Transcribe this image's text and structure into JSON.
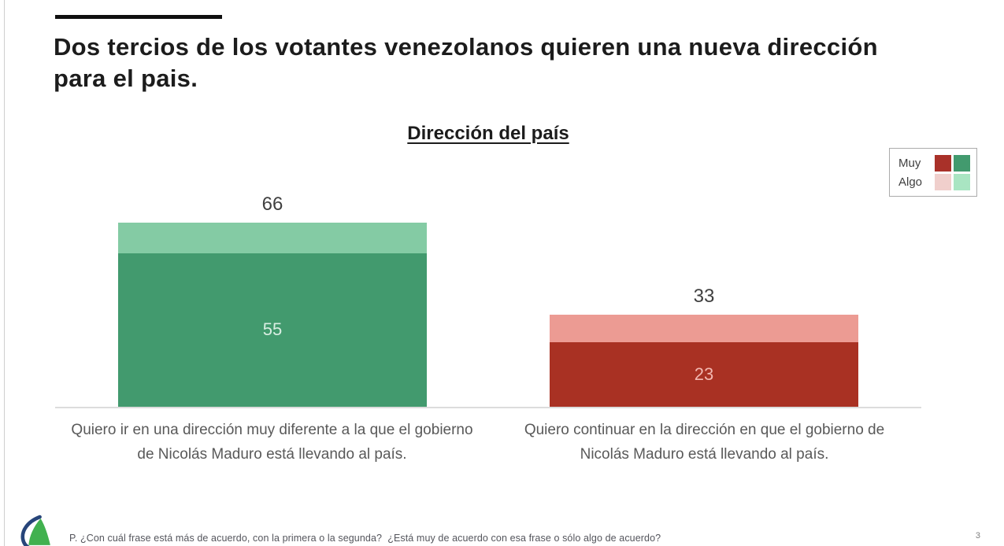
{
  "slide": {
    "title": "Dos tercios de los votantes venezolanos quieren una nueva dirección para el pais.",
    "footnote": "P. ¿Con cuál frase está más de acuerdo, con la primera o la segunda?  ¿Está muy de acuerdo con esa frase o sólo algo de acuerdo?",
    "page_number": "3"
  },
  "chart_data": {
    "type": "bar",
    "subtype": "stacked-columns",
    "title": "Dirección del país",
    "ylim": [
      0,
      78
    ],
    "grid": false,
    "legend": {
      "position": "top-right",
      "rows": [
        {
          "label": "Muy",
          "swatches": [
            "#A93129",
            "#429A6E"
          ]
        },
        {
          "label": "Algo",
          "swatches": [
            "#F0CFCC",
            "#A9E5C2"
          ]
        }
      ]
    },
    "categories": [
      "Quiero ir en una dirección muy diferente a la que el gobierno de Nicolás Maduro está llevando al país.",
      "Quiero continuar en la dirección en que el gobierno de Nicolás Maduro está llevando al país."
    ],
    "series": [
      {
        "name": "Muy",
        "values": [
          55,
          23
        ]
      },
      {
        "name": "Algo",
        "values": [
          11,
          10
        ]
      }
    ],
    "totals": [
      66,
      33
    ],
    "bars": [
      {
        "total_label": "66",
        "muy": 55,
        "muy_label": "55",
        "algo": 11,
        "muy_color": "#429A6E",
        "algo_color": "#84CBA4",
        "muy_label_color": "#D9EEE2"
      },
      {
        "total_label": "33",
        "muy": 23,
        "muy_label": "23",
        "algo": 10,
        "muy_color": "#A93123",
        "algo_color": "#EC9B93",
        "muy_label_color": "#F2B7B0"
      }
    ],
    "logo_colors": {
      "sail_green": "#41B14F",
      "swoosh_navy": "#27457A"
    }
  }
}
